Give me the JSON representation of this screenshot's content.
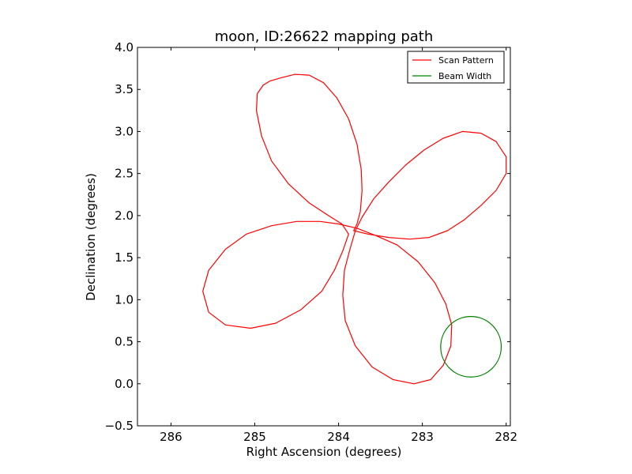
{
  "chart_data": {
    "type": "line",
    "title": "moon, ID:26622 mapping path",
    "xlabel": "Right Ascension (degrees)",
    "ylabel": "Declination (degrees)",
    "xlim": [
      286.4,
      281.95
    ],
    "ylim": [
      -0.5,
      4.0
    ],
    "x_ticks": [
      286,
      285,
      284,
      283,
      282
    ],
    "x_tick_labels": [
      "286",
      "285",
      "284",
      "283",
      "282"
    ],
    "y_ticks": [
      -0.5,
      0.0,
      0.5,
      1.0,
      1.5,
      2.0,
      2.5,
      3.0,
      3.5,
      4.0
    ],
    "y_tick_labels": [
      "−0.5",
      "0.0",
      "0.5",
      "1.0",
      "1.5",
      "2.0",
      "2.5",
      "3.0",
      "3.5",
      "4.0"
    ],
    "grid": false,
    "legend_position": "top-right",
    "series": [
      {
        "name": "Scan Pattern",
        "color": "#ff0000",
        "points": [
          [
            284.82,
            3.6
          ],
          [
            284.68,
            3.64
          ],
          [
            284.52,
            3.68
          ],
          [
            284.35,
            3.67
          ],
          [
            284.18,
            3.58
          ],
          [
            284.02,
            3.4
          ],
          [
            283.88,
            3.15
          ],
          [
            283.78,
            2.85
          ],
          [
            283.73,
            2.55
          ],
          [
            283.72,
            2.3
          ],
          [
            283.74,
            2.05
          ],
          [
            283.78,
            1.9
          ],
          [
            283.82,
            1.82
          ],
          [
            283.65,
            1.78
          ],
          [
            283.4,
            1.74
          ],
          [
            283.15,
            1.72
          ],
          [
            282.92,
            1.74
          ],
          [
            282.7,
            1.82
          ],
          [
            282.5,
            1.95
          ],
          [
            282.3,
            2.12
          ],
          [
            282.12,
            2.3
          ],
          [
            282.0,
            2.5
          ],
          [
            282.0,
            2.7
          ],
          [
            282.12,
            2.88
          ],
          [
            282.3,
            2.98
          ],
          [
            282.52,
            3.0
          ],
          [
            282.75,
            2.92
          ],
          [
            282.98,
            2.78
          ],
          [
            283.2,
            2.6
          ],
          [
            283.4,
            2.4
          ],
          [
            283.58,
            2.2
          ],
          [
            283.72,
            1.98
          ],
          [
            283.8,
            1.82
          ],
          [
            283.87,
            1.58
          ],
          [
            283.93,
            1.35
          ],
          [
            283.95,
            1.05
          ],
          [
            283.92,
            0.75
          ],
          [
            283.8,
            0.45
          ],
          [
            283.6,
            0.2
          ],
          [
            283.35,
            0.05
          ],
          [
            283.1,
            0.0
          ],
          [
            282.9,
            0.05
          ],
          [
            282.75,
            0.22
          ],
          [
            282.66,
            0.45
          ],
          [
            282.65,
            0.7
          ],
          [
            282.72,
            0.95
          ],
          [
            282.85,
            1.2
          ],
          [
            283.05,
            1.45
          ],
          [
            283.3,
            1.65
          ],
          [
            283.55,
            1.76
          ],
          [
            283.78,
            1.85
          ],
          [
            284.0,
            1.9
          ],
          [
            284.22,
            1.93
          ],
          [
            284.5,
            1.93
          ],
          [
            284.8,
            1.88
          ],
          [
            285.1,
            1.78
          ],
          [
            285.35,
            1.6
          ],
          [
            285.55,
            1.35
          ],
          [
            285.62,
            1.1
          ],
          [
            285.55,
            0.85
          ],
          [
            285.35,
            0.7
          ],
          [
            285.05,
            0.66
          ],
          [
            284.75,
            0.72
          ],
          [
            284.45,
            0.88
          ],
          [
            284.2,
            1.1
          ],
          [
            284.05,
            1.35
          ],
          [
            283.95,
            1.58
          ],
          [
            283.88,
            1.78
          ],
          [
            283.96,
            1.9
          ],
          [
            284.12,
            2.0
          ],
          [
            284.35,
            2.15
          ],
          [
            284.6,
            2.38
          ],
          [
            284.8,
            2.65
          ],
          [
            284.92,
            2.95
          ],
          [
            284.98,
            3.25
          ],
          [
            284.97,
            3.45
          ],
          [
            284.9,
            3.55
          ],
          [
            284.82,
            3.6
          ]
        ]
      },
      {
        "name": "Beam Width",
        "color": "#008000",
        "shape": "circle",
        "center": [
          282.42,
          0.44
        ],
        "radius_deg": 0.36
      }
    ]
  }
}
